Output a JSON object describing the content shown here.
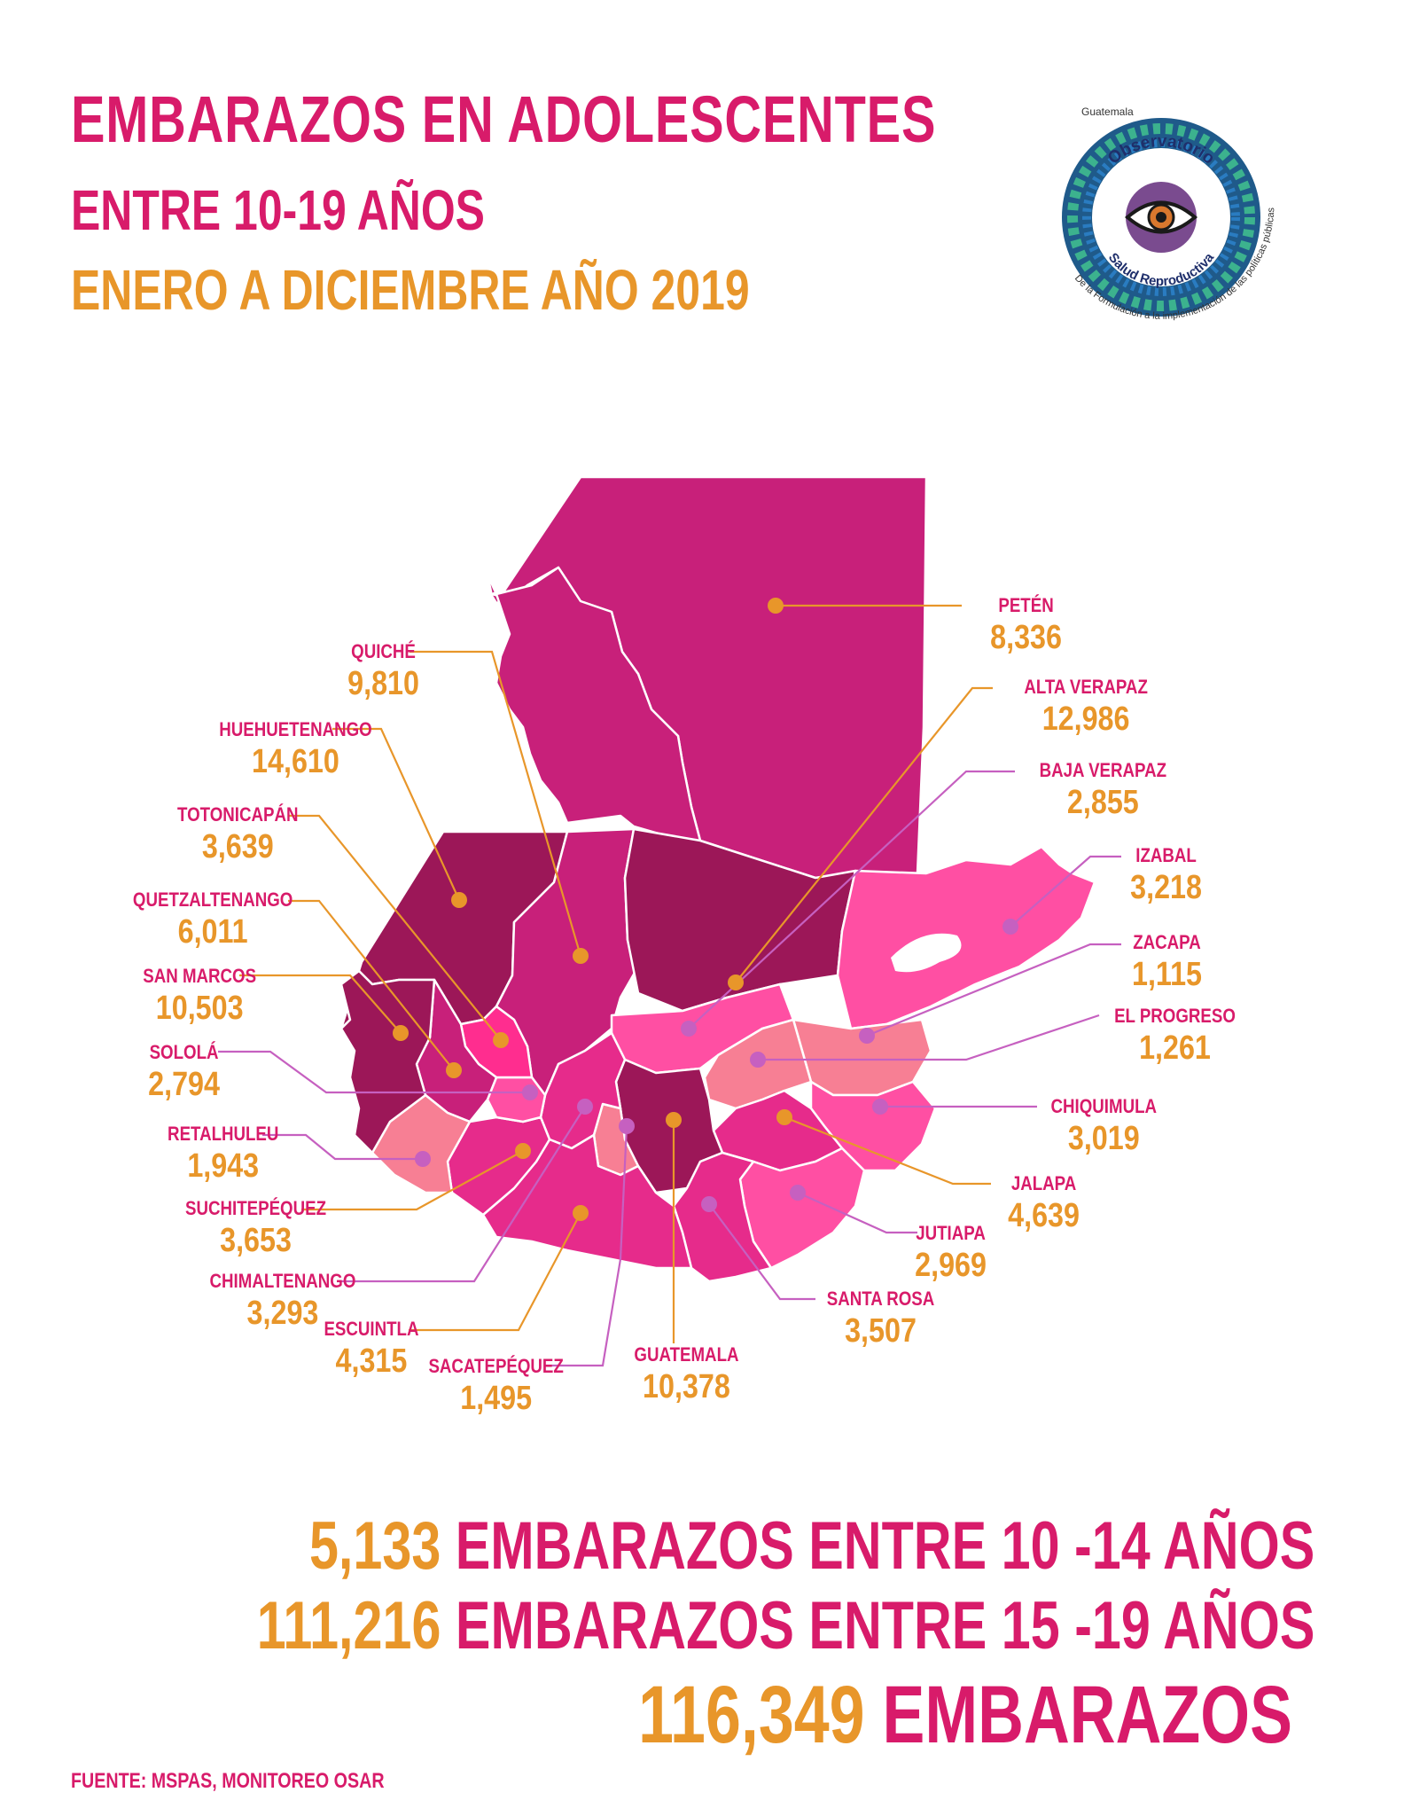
{
  "title": {
    "line1": "EMBARAZOS EN ADOLESCENTES",
    "line2": "ENTRE 10-19 AÑOS",
    "line3": "ENERO A DICIEMBRE AÑO 2019"
  },
  "logo": {
    "top_text": "Guatemala",
    "ring_text_top": "Observatorio",
    "ring_text_bottom": "Salud Reproductiva",
    "outer_text": "De la Formulación a la implementación de las políticas públicas"
  },
  "colors": {
    "pink": "#d81b6a",
    "orange": "#e8962a",
    "dark_magenta": "#9c1758",
    "magenta": "#c8207a",
    "bright_pink": "#e62b8b",
    "light_pink": "#ff4fa3",
    "salmon": "#f77f94"
  },
  "departments": [
    {
      "name": "PETÉN",
      "value": "8,336"
    },
    {
      "name": "QUICHÉ",
      "value": "9,810"
    },
    {
      "name": "ALTA VERAPAZ",
      "value": "12,986"
    },
    {
      "name": "HUEHUETENANGO",
      "value": "14,610"
    },
    {
      "name": "BAJA VERAPAZ",
      "value": "2,855"
    },
    {
      "name": "TOTONICAPÁN",
      "value": "3,639"
    },
    {
      "name": "IZABAL",
      "value": "3,218"
    },
    {
      "name": "QUETZALTENANGO",
      "value": "6,011"
    },
    {
      "name": "ZACAPA",
      "value": "1,115"
    },
    {
      "name": "SAN MARCOS",
      "value": "10,503"
    },
    {
      "name": "EL PROGRESO",
      "value": "1,261"
    },
    {
      "name": "SOLOLÁ",
      "value": "2,794"
    },
    {
      "name": "CHIQUIMULA",
      "value": "3,019"
    },
    {
      "name": "RETALHULEU",
      "value": "1,943"
    },
    {
      "name": "JALAPA",
      "value": "4,639"
    },
    {
      "name": "SUCHITEPÉQUEZ",
      "value": "3,653"
    },
    {
      "name": "JUTIAPA",
      "value": "2,969"
    },
    {
      "name": "CHIMALTENANGO",
      "value": "3,293"
    },
    {
      "name": "SANTA ROSA",
      "value": "3,507"
    },
    {
      "name": "ESCUINTLA",
      "value": "4,315"
    },
    {
      "name": "SACATEPÉQUEZ",
      "value": "1,495"
    },
    {
      "name": "GUATEMALA",
      "value": "10,378"
    }
  ],
  "summary": [
    {
      "number": "5,133",
      "text": "EMBARAZOS ENTRE 10 -14 AÑOS"
    },
    {
      "number": "111,216",
      "text": "EMBARAZOS ENTRE 15 -19 AÑOS"
    },
    {
      "number": "116,349",
      "text": "EMBARAZOS"
    }
  ],
  "source": "FUENTE: MSPAS, MONITOREO OSAR"
}
